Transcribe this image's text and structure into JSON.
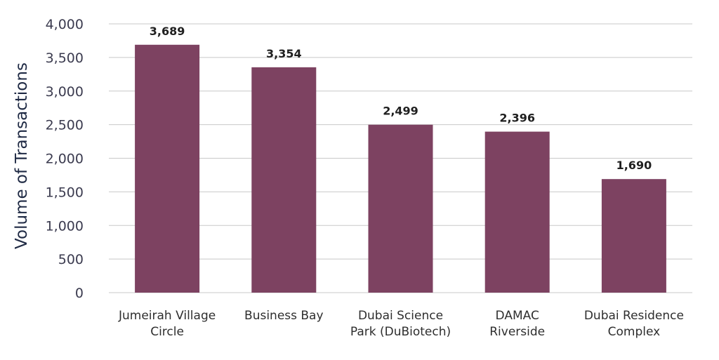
{
  "chart_data": {
    "type": "bar",
    "title": "",
    "xlabel": "",
    "ylabel": "Volume of Transactions",
    "categories": [
      [
        "Jumeirah Village",
        "Circle"
      ],
      [
        "Business Bay"
      ],
      [
        "Dubai Science",
        "Park (DuBiotech)"
      ],
      [
        "DAMAC",
        "Riverside"
      ],
      [
        "Dubai Residence",
        "Complex"
      ]
    ],
    "values": [
      3689,
      3354,
      2499,
      2396,
      1690
    ],
    "data_labels": [
      "3,689",
      "3,354",
      "2,499",
      "2,396",
      "1,690"
    ],
    "yticks": [
      0,
      500,
      1000,
      1500,
      2000,
      2500,
      3000,
      3500,
      4000
    ],
    "ytick_labels": [
      "0",
      "500",
      "1,000",
      "1,500",
      "2,000",
      "2,500",
      "3,000",
      "3,500",
      "4,000"
    ],
    "ylim": [
      0,
      4000
    ],
    "grid": true,
    "legend": "none",
    "colors": {
      "bar": "#7d4261",
      "grid": "#c8c8c8",
      "axis_text": "#3b3b4f",
      "title_text": "#1f2a44"
    }
  }
}
